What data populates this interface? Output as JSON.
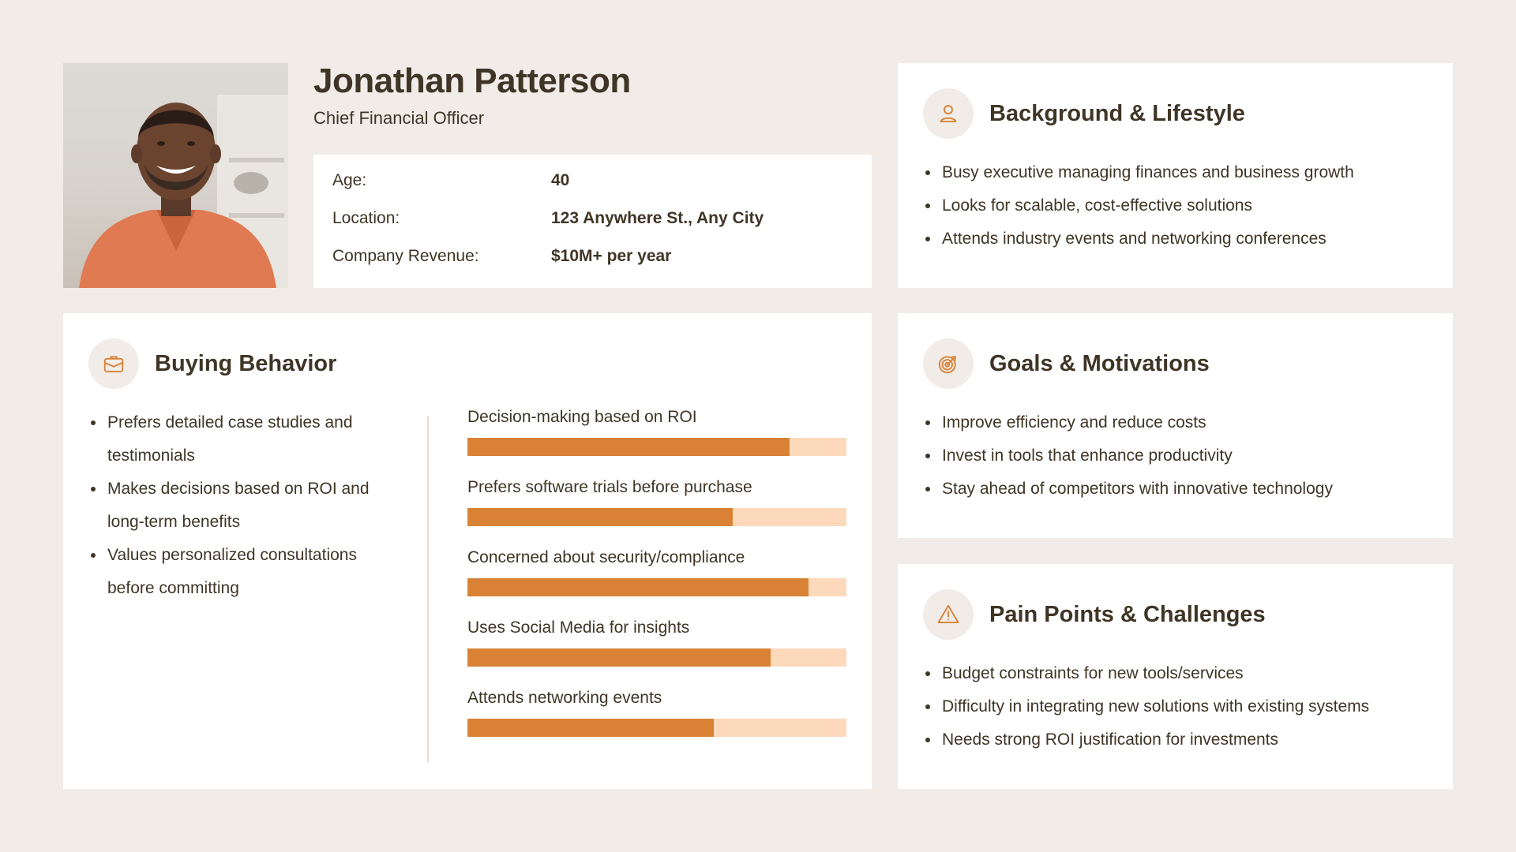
{
  "profile": {
    "name": "Jonathan Patterson",
    "role": "Chief Financial Officer",
    "info": [
      {
        "label": "Age:",
        "value": "40"
      },
      {
        "label": "Location:",
        "value": "123 Anywhere St., Any City"
      },
      {
        "label": "Company Revenue:",
        "value": "$10M+ per year"
      }
    ]
  },
  "background": {
    "icon": "user-icon",
    "title": "Background & Lifestyle",
    "items": [
      "Busy executive managing finances and business growth",
      "Looks for scalable, cost-effective solutions",
      "Attends industry events and networking conferences"
    ]
  },
  "buying": {
    "icon": "briefcase-icon",
    "title": "Buying Behavior",
    "items": [
      "Prefers detailed case studies and testimonials",
      "Makes decisions based on ROI and long-term benefits",
      "Values personalized consultations before committing"
    ],
    "bars": [
      {
        "label": "Decision-making based on ROI",
        "level": 0.85
      },
      {
        "label": "Prefers software trials before purchase",
        "level": 0.7
      },
      {
        "label": "Concerned about security/compliance",
        "level": 0.9
      },
      {
        "label": "Uses Social Media for insights",
        "level": 0.8
      },
      {
        "label": "Attends networking events",
        "level": 0.65
      }
    ]
  },
  "goals": {
    "icon": "target-icon",
    "title": "Goals & Motivations",
    "items": [
      "Improve efficiency and reduce costs",
      "Invest in tools that enhance productivity",
      "Stay ahead of competitors with innovative technology"
    ]
  },
  "pain": {
    "icon": "warning-icon",
    "title": "Pain Points & Challenges",
    "items": [
      "Budget constraints for new tools/services",
      "Difficulty in integrating new solutions with existing systems",
      "Needs strong ROI justification for investments"
    ]
  },
  "colors": {
    "background": "#f1ece8",
    "text": "#3f3526",
    "accent": "#d98236",
    "accent_light": "#fdd9bb"
  }
}
